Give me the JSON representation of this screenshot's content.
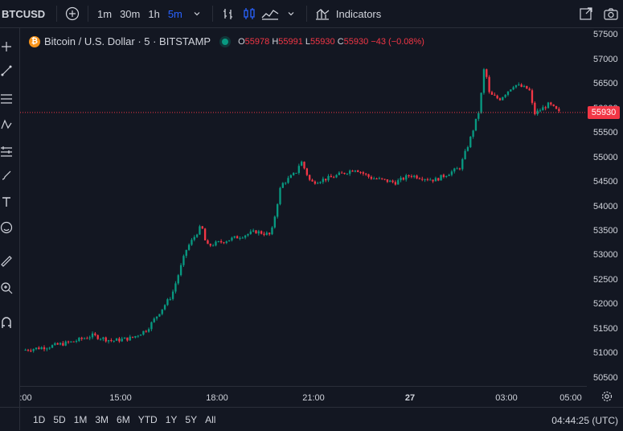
{
  "header": {
    "symbol": "BTCUSD",
    "intervals": [
      {
        "label": "1m",
        "active": false
      },
      {
        "label": "30m",
        "active": false
      },
      {
        "label": "1h",
        "active": false
      },
      {
        "label": "5m",
        "active": true
      }
    ],
    "indicators_label": "Indicators",
    "icons": [
      "add-symbol-icon",
      "chevron-down-icon",
      "bar-style-icon",
      "candle-style-icon",
      "area-style-icon",
      "indicators-icon",
      "fullscreen-icon",
      "snapshot-icon"
    ]
  },
  "legend": {
    "title": "Bitcoin / U.S. Dollar · 5 · BITSTAMP",
    "o_label": "O",
    "o_value": "55978",
    "h_label": "H",
    "h_value": "55991",
    "l_label": "L",
    "l_value": "55930",
    "c_label": "C",
    "c_value": "55930",
    "change": "−43 (−0.08%)"
  },
  "left_toolbar": [
    "crosshair-icon",
    "trendline-icon",
    "fib-icon",
    "pattern-icon",
    "prediction-icon",
    "brush-icon",
    "text-icon",
    "emoji-icon",
    "ruler-icon",
    "zoom-icon",
    "magnet-icon"
  ],
  "price_axis": [
    "57500",
    "57000",
    "56500",
    "56000",
    "55500",
    "55000",
    "54500",
    "54000",
    "53500",
    "53000",
    "52500",
    "52000",
    "51500",
    "51000",
    "50500"
  ],
  "last_price": "55930",
  "time_axis": [
    {
      "label": ":00",
      "bold": false
    },
    {
      "label": "15:00",
      "bold": false
    },
    {
      "label": "18:00",
      "bold": false
    },
    {
      "label": "21:00",
      "bold": false
    },
    {
      "label": "27",
      "bold": true
    },
    {
      "label": "03:00",
      "bold": false
    },
    {
      "label": "05:00",
      "bold": false
    }
  ],
  "bottom_bar": {
    "ranges": [
      "1D",
      "5D",
      "1M",
      "3M",
      "6M",
      "YTD",
      "1Y",
      "5Y",
      "All"
    ],
    "clock": "04:44:25 (UTC)"
  },
  "colors": {
    "up": "#089981",
    "down": "#f23645",
    "bg": "#131722",
    "accent": "#2962ff"
  },
  "chart_data": {
    "type": "line",
    "ylim": [
      50350,
      57650
    ],
    "x_labels": [
      ":00",
      "15:00",
      "18:00",
      "21:00",
      "27",
      "03:00",
      "05:00"
    ],
    "close_path": [
      [
        0,
        51080
      ],
      [
        5,
        51150
      ],
      [
        10,
        51250
      ],
      [
        14,
        51380
      ],
      [
        18,
        51270
      ],
      [
        22,
        51330
      ],
      [
        25,
        51500
      ],
      [
        30,
        52200
      ],
      [
        33,
        53150
      ],
      [
        36,
        53620
      ],
      [
        37,
        53200
      ],
      [
        42,
        53350
      ],
      [
        47,
        53500
      ],
      [
        50,
        53430
      ],
      [
        52,
        54450
      ],
      [
        55,
        54700
      ],
      [
        56,
        54950
      ],
      [
        58,
        54500
      ],
      [
        62,
        54600
      ],
      [
        67,
        54780
      ],
      [
        70,
        54600
      ],
      [
        75,
        54500
      ],
      [
        78,
        54650
      ],
      [
        83,
        54550
      ],
      [
        88,
        54800
      ],
      [
        90,
        55350
      ],
      [
        92,
        56000
      ],
      [
        93,
        56900
      ],
      [
        94,
        56300
      ],
      [
        96,
        56200
      ],
      [
        99,
        56500
      ],
      [
        102,
        56400
      ],
      [
        103,
        55900
      ],
      [
        106,
        56100
      ],
      [
        108,
        55930
      ]
    ]
  }
}
